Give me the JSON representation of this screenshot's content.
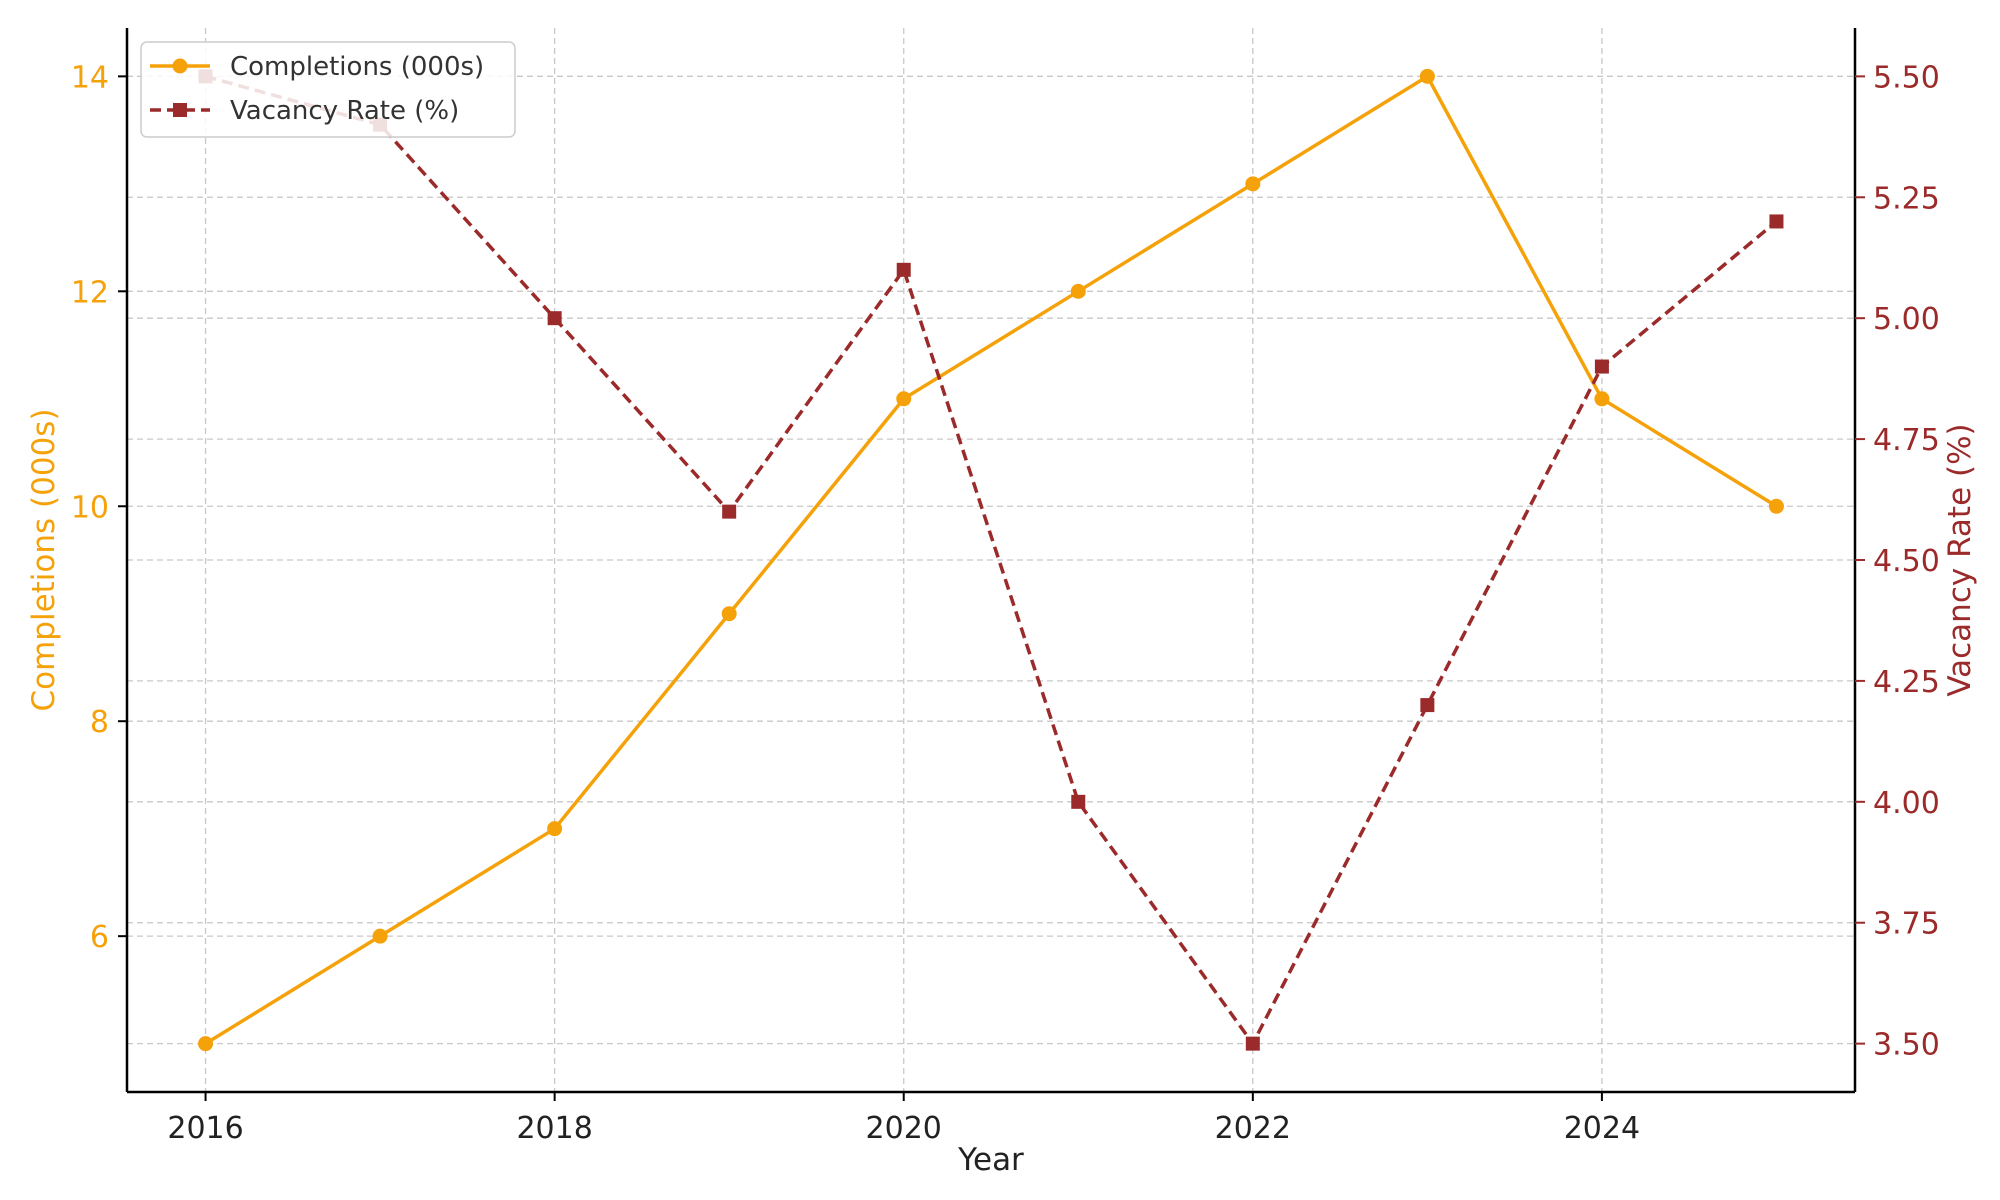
{
  "chart_data": {
    "type": "line",
    "x": [
      2016,
      2017,
      2018,
      2019,
      2020,
      2021,
      2022,
      2023,
      2024,
      2025
    ],
    "x_ticks": [
      "2016",
      "2018",
      "2020",
      "2022",
      "2024"
    ],
    "xlabel": "Year",
    "grid": true,
    "legend_position": "top-left",
    "series": [
      {
        "name": "Completions (000s)",
        "axis": "left",
        "color": "#f5a20a",
        "line_style": "solid",
        "marker": "circle",
        "values": [
          5,
          6,
          7,
          9,
          11,
          12,
          13,
          14,
          11,
          10
        ]
      },
      {
        "name": "Vacancy Rate (%)",
        "axis": "right",
        "color": "#9b2a2a",
        "line_style": "dashed",
        "marker": "square",
        "values": [
          5.5,
          5.4,
          5.0,
          4.6,
          5.1,
          4.0,
          3.5,
          4.2,
          4.9,
          5.2
        ]
      }
    ],
    "y_left": {
      "label": "Completions (000s)",
      "ylim": [
        4.55,
        14.45
      ],
      "ticks": [
        "6",
        "8",
        "10",
        "12",
        "14"
      ],
      "tick_values": [
        6,
        8,
        10,
        12,
        14
      ],
      "color": "#f5a20a"
    },
    "y_right": {
      "label": "Vacancy Rate (%)",
      "ylim": [
        3.4,
        5.6
      ],
      "ticks": [
        "3.50",
        "3.75",
        "4.00",
        "4.25",
        "4.50",
        "4.75",
        "5.00",
        "5.25",
        "5.50"
      ],
      "tick_values": [
        3.5,
        3.75,
        4.0,
        4.25,
        4.5,
        4.75,
        5.0,
        5.25,
        5.5
      ],
      "color": "#9b2a2a"
    },
    "xlim": [
      2015.55,
      2025.45
    ]
  }
}
